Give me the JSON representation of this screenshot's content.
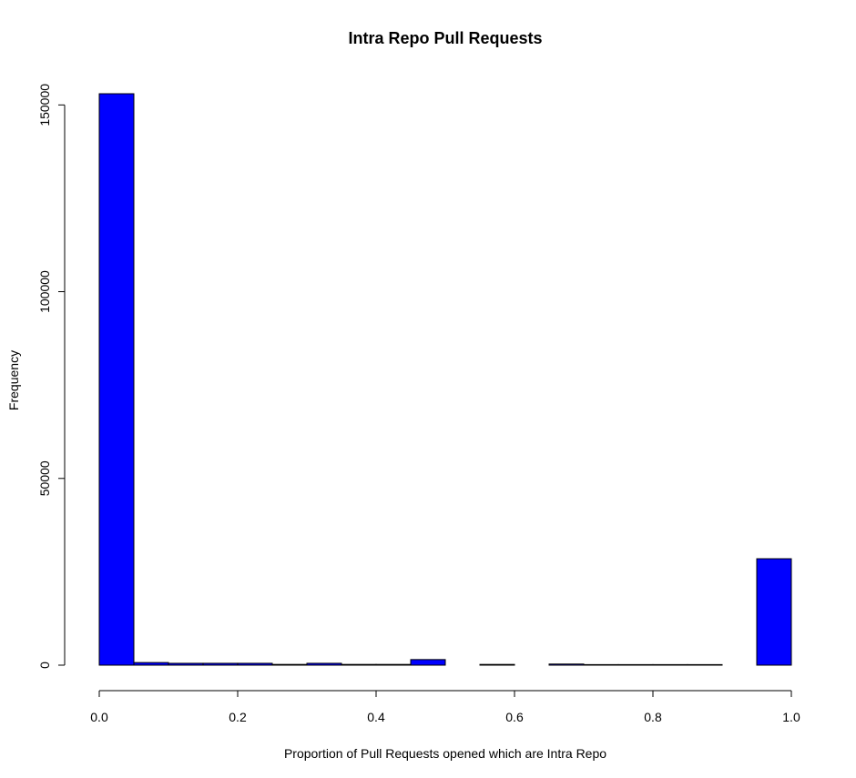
{
  "chart_data": {
    "type": "bar",
    "title": "Intra Repo Pull Requests",
    "xlabel": "Proportion of Pull Requests opened which are Intra Repo",
    "ylabel": "Frequency",
    "bar_color": "#0000ff",
    "bin_width": 0.05,
    "bin_starts": [
      0.0,
      0.05,
      0.1,
      0.15,
      0.2,
      0.25,
      0.3,
      0.35,
      0.4,
      0.45,
      0.5,
      0.55,
      0.6,
      0.65,
      0.7,
      0.75,
      0.8,
      0.85,
      0.9,
      0.95
    ],
    "values": [
      153000,
      700,
      500,
      500,
      500,
      200,
      500,
      200,
      200,
      1500,
      0,
      200,
      0,
      300,
      150,
      150,
      150,
      150,
      0,
      28500
    ],
    "xlim": [
      0,
      1
    ],
    "ylim": [
      0,
      153000
    ],
    "x_ticks": [
      "0.0",
      "0.2",
      "0.4",
      "0.6",
      "0.8",
      "1.0"
    ],
    "x_tick_values": [
      0,
      0.2,
      0.4,
      0.6,
      0.8,
      1.0
    ],
    "y_ticks": [
      "0",
      "50000",
      "100000",
      "150000"
    ],
    "y_tick_values": [
      0,
      50000,
      100000,
      150000
    ],
    "grid": false,
    "legend": "none"
  }
}
